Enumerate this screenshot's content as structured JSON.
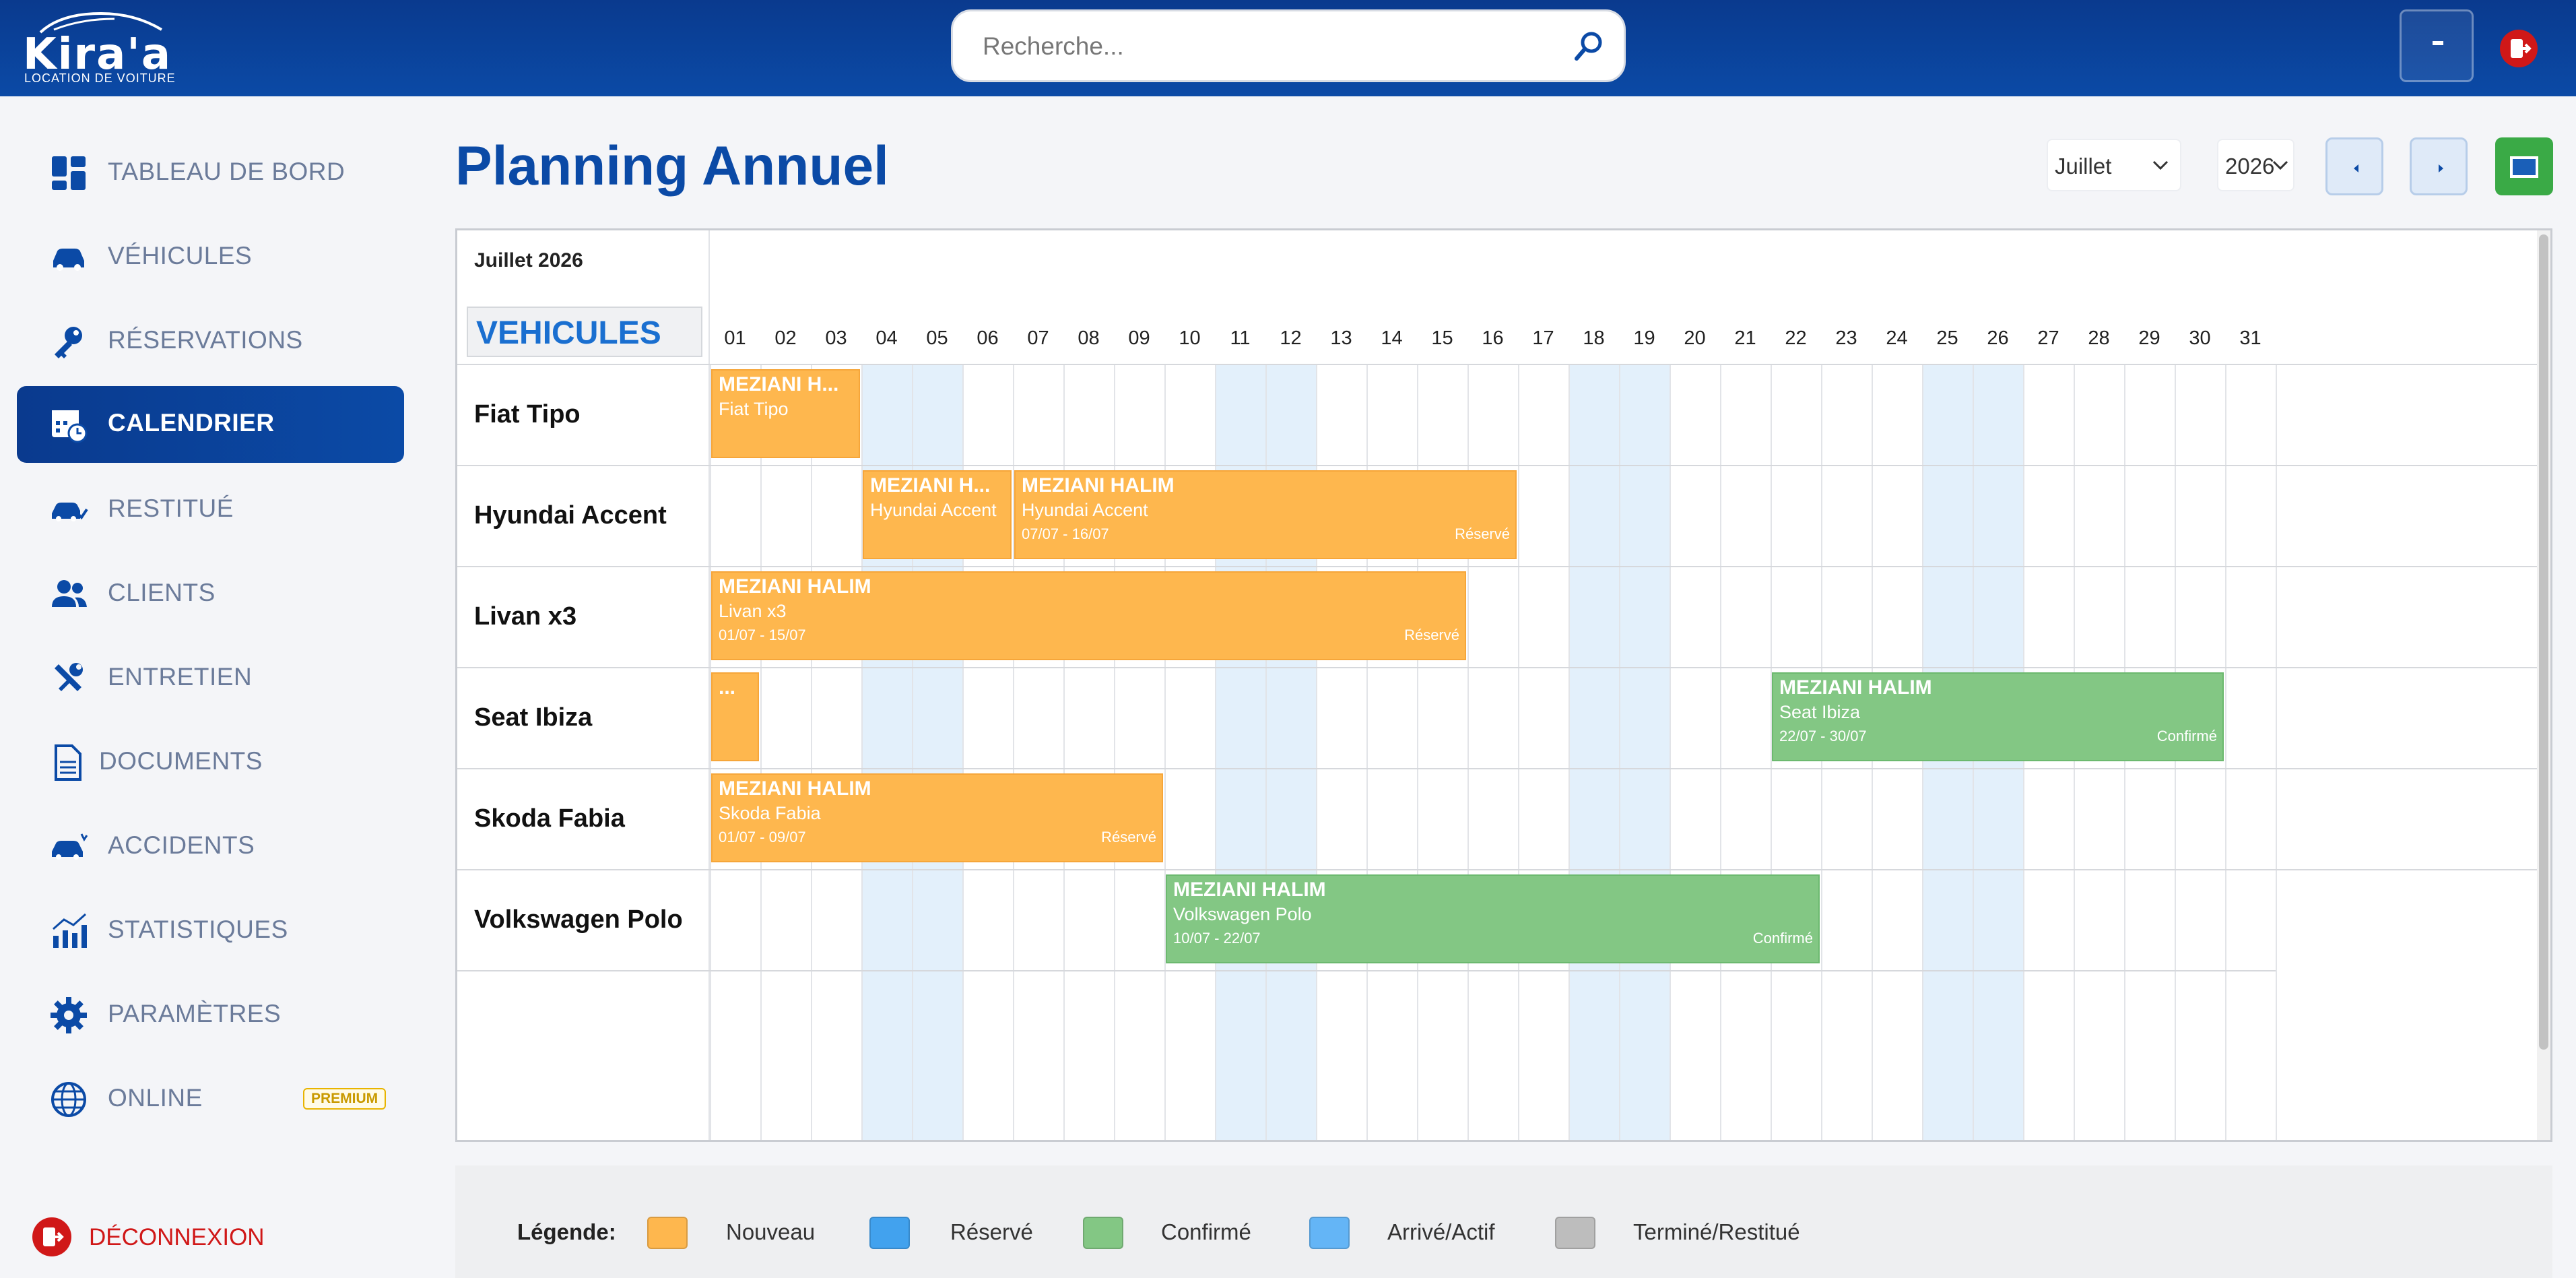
{
  "header": {
    "brand": "Kira'a",
    "brand_sub": "LOCATION DE VOITURE",
    "search_placeholder": "Recherche..."
  },
  "sidebar": {
    "items": [
      {
        "label": "TABLEAU DE BORD",
        "icon": "dashboard-icon"
      },
      {
        "label": "VÉHICULES",
        "icon": "car-icon"
      },
      {
        "label": "RÉSERVATIONS",
        "icon": "key-icon"
      },
      {
        "label": "CALENDRIER",
        "icon": "calendar-icon",
        "active": true
      },
      {
        "label": "RESTITUÉ",
        "icon": "car-check-icon"
      },
      {
        "label": "CLIENTS",
        "icon": "users-icon"
      },
      {
        "label": "ENTRETIEN",
        "icon": "tools-icon"
      },
      {
        "label": "DOCUMENTS",
        "icon": "document-icon"
      },
      {
        "label": "ACCIDENTS",
        "icon": "car-crash-icon"
      },
      {
        "label": "STATISTIQUES",
        "icon": "chart-icon"
      },
      {
        "label": "PARAMÈTRES",
        "icon": "gear-icon"
      },
      {
        "label": "ONLINE",
        "icon": "globe-icon",
        "badge": "PREMIUM"
      }
    ],
    "logout": "DÉCONNEXION"
  },
  "main": {
    "title": "Planning Annuel",
    "month_select": "Juillet",
    "year_select": "2026"
  },
  "calendar": {
    "month_label": "Juillet 2026",
    "vehicles_header": "VEHICULES",
    "days": [
      "01",
      "02",
      "03",
      "04",
      "05",
      "06",
      "07",
      "08",
      "09",
      "10",
      "11",
      "12",
      "13",
      "14",
      "15",
      "16",
      "17",
      "18",
      "19",
      "20",
      "21",
      "22",
      "23",
      "24",
      "25",
      "26",
      "27",
      "28",
      "29",
      "30",
      "31"
    ],
    "weekend_days": [
      4,
      5,
      11,
      12,
      18,
      19,
      25,
      26
    ],
    "vehicles": [
      "Fiat Tipo",
      "Hyundai Accent",
      "Livan x3",
      "Seat Ibiza",
      "Skoda Fabia",
      "Volkswagen Polo"
    ],
    "bookings": [
      {
        "row": 0,
        "start": 1,
        "end": 3,
        "status": "nouveau",
        "name": "MEZIANI H...",
        "vehicle": "Fiat Tipo",
        "dates": "",
        "label": ""
      },
      {
        "row": 1,
        "start": 4,
        "end": 6,
        "status": "nouveau",
        "name": "MEZIANI H...",
        "vehicle": "Hyundai Accent",
        "dates": "",
        "label": ""
      },
      {
        "row": 1,
        "start": 7,
        "end": 16,
        "status": "nouveau",
        "name": "MEZIANI HALIM",
        "vehicle": "Hyundai Accent",
        "dates": "07/07 - 16/07",
        "label": "Réservé"
      },
      {
        "row": 2,
        "start": 1,
        "end": 15,
        "status": "nouveau",
        "name": "MEZIANI HALIM",
        "vehicle": "Livan x3",
        "dates": "01/07 - 15/07",
        "label": "Réservé"
      },
      {
        "row": 3,
        "start": 1,
        "end": 1,
        "status": "nouveau",
        "name": "...",
        "vehicle": "",
        "dates": "",
        "label": ""
      },
      {
        "row": 3,
        "start": 22,
        "end": 30,
        "status": "confirme",
        "name": "MEZIANI HALIM",
        "vehicle": "Seat Ibiza",
        "dates": "22/07 - 30/07",
        "label": "Confirmé"
      },
      {
        "row": 4,
        "start": 1,
        "end": 9,
        "status": "nouveau",
        "name": "MEZIANI HALIM",
        "vehicle": "Skoda Fabia",
        "dates": "01/07 - 09/07",
        "label": "Réservé"
      },
      {
        "row": 5,
        "start": 10,
        "end": 22,
        "status": "confirme",
        "name": "MEZIANI HALIM",
        "vehicle": "Volkswagen Polo",
        "dates": "10/07 - 22/07",
        "label": "Confirmé"
      }
    ]
  },
  "legend": {
    "title": "Légende:",
    "items": [
      {
        "label": "Nouveau",
        "color": "#feb74e"
      },
      {
        "label": "Réservé",
        "color": "#42a2ee"
      },
      {
        "label": "Confirmé",
        "color": "#83c784"
      },
      {
        "label": "Arrivé/Actif",
        "color": "#64b5f6"
      },
      {
        "label": "Terminé/Restitué",
        "color": "#bdbdbd"
      }
    ]
  },
  "colors": {
    "brand_blue": "#0b4aa6",
    "nouveau": "#feb74e",
    "confirme": "#83c784",
    "weekend": "#e3f0fb"
  }
}
